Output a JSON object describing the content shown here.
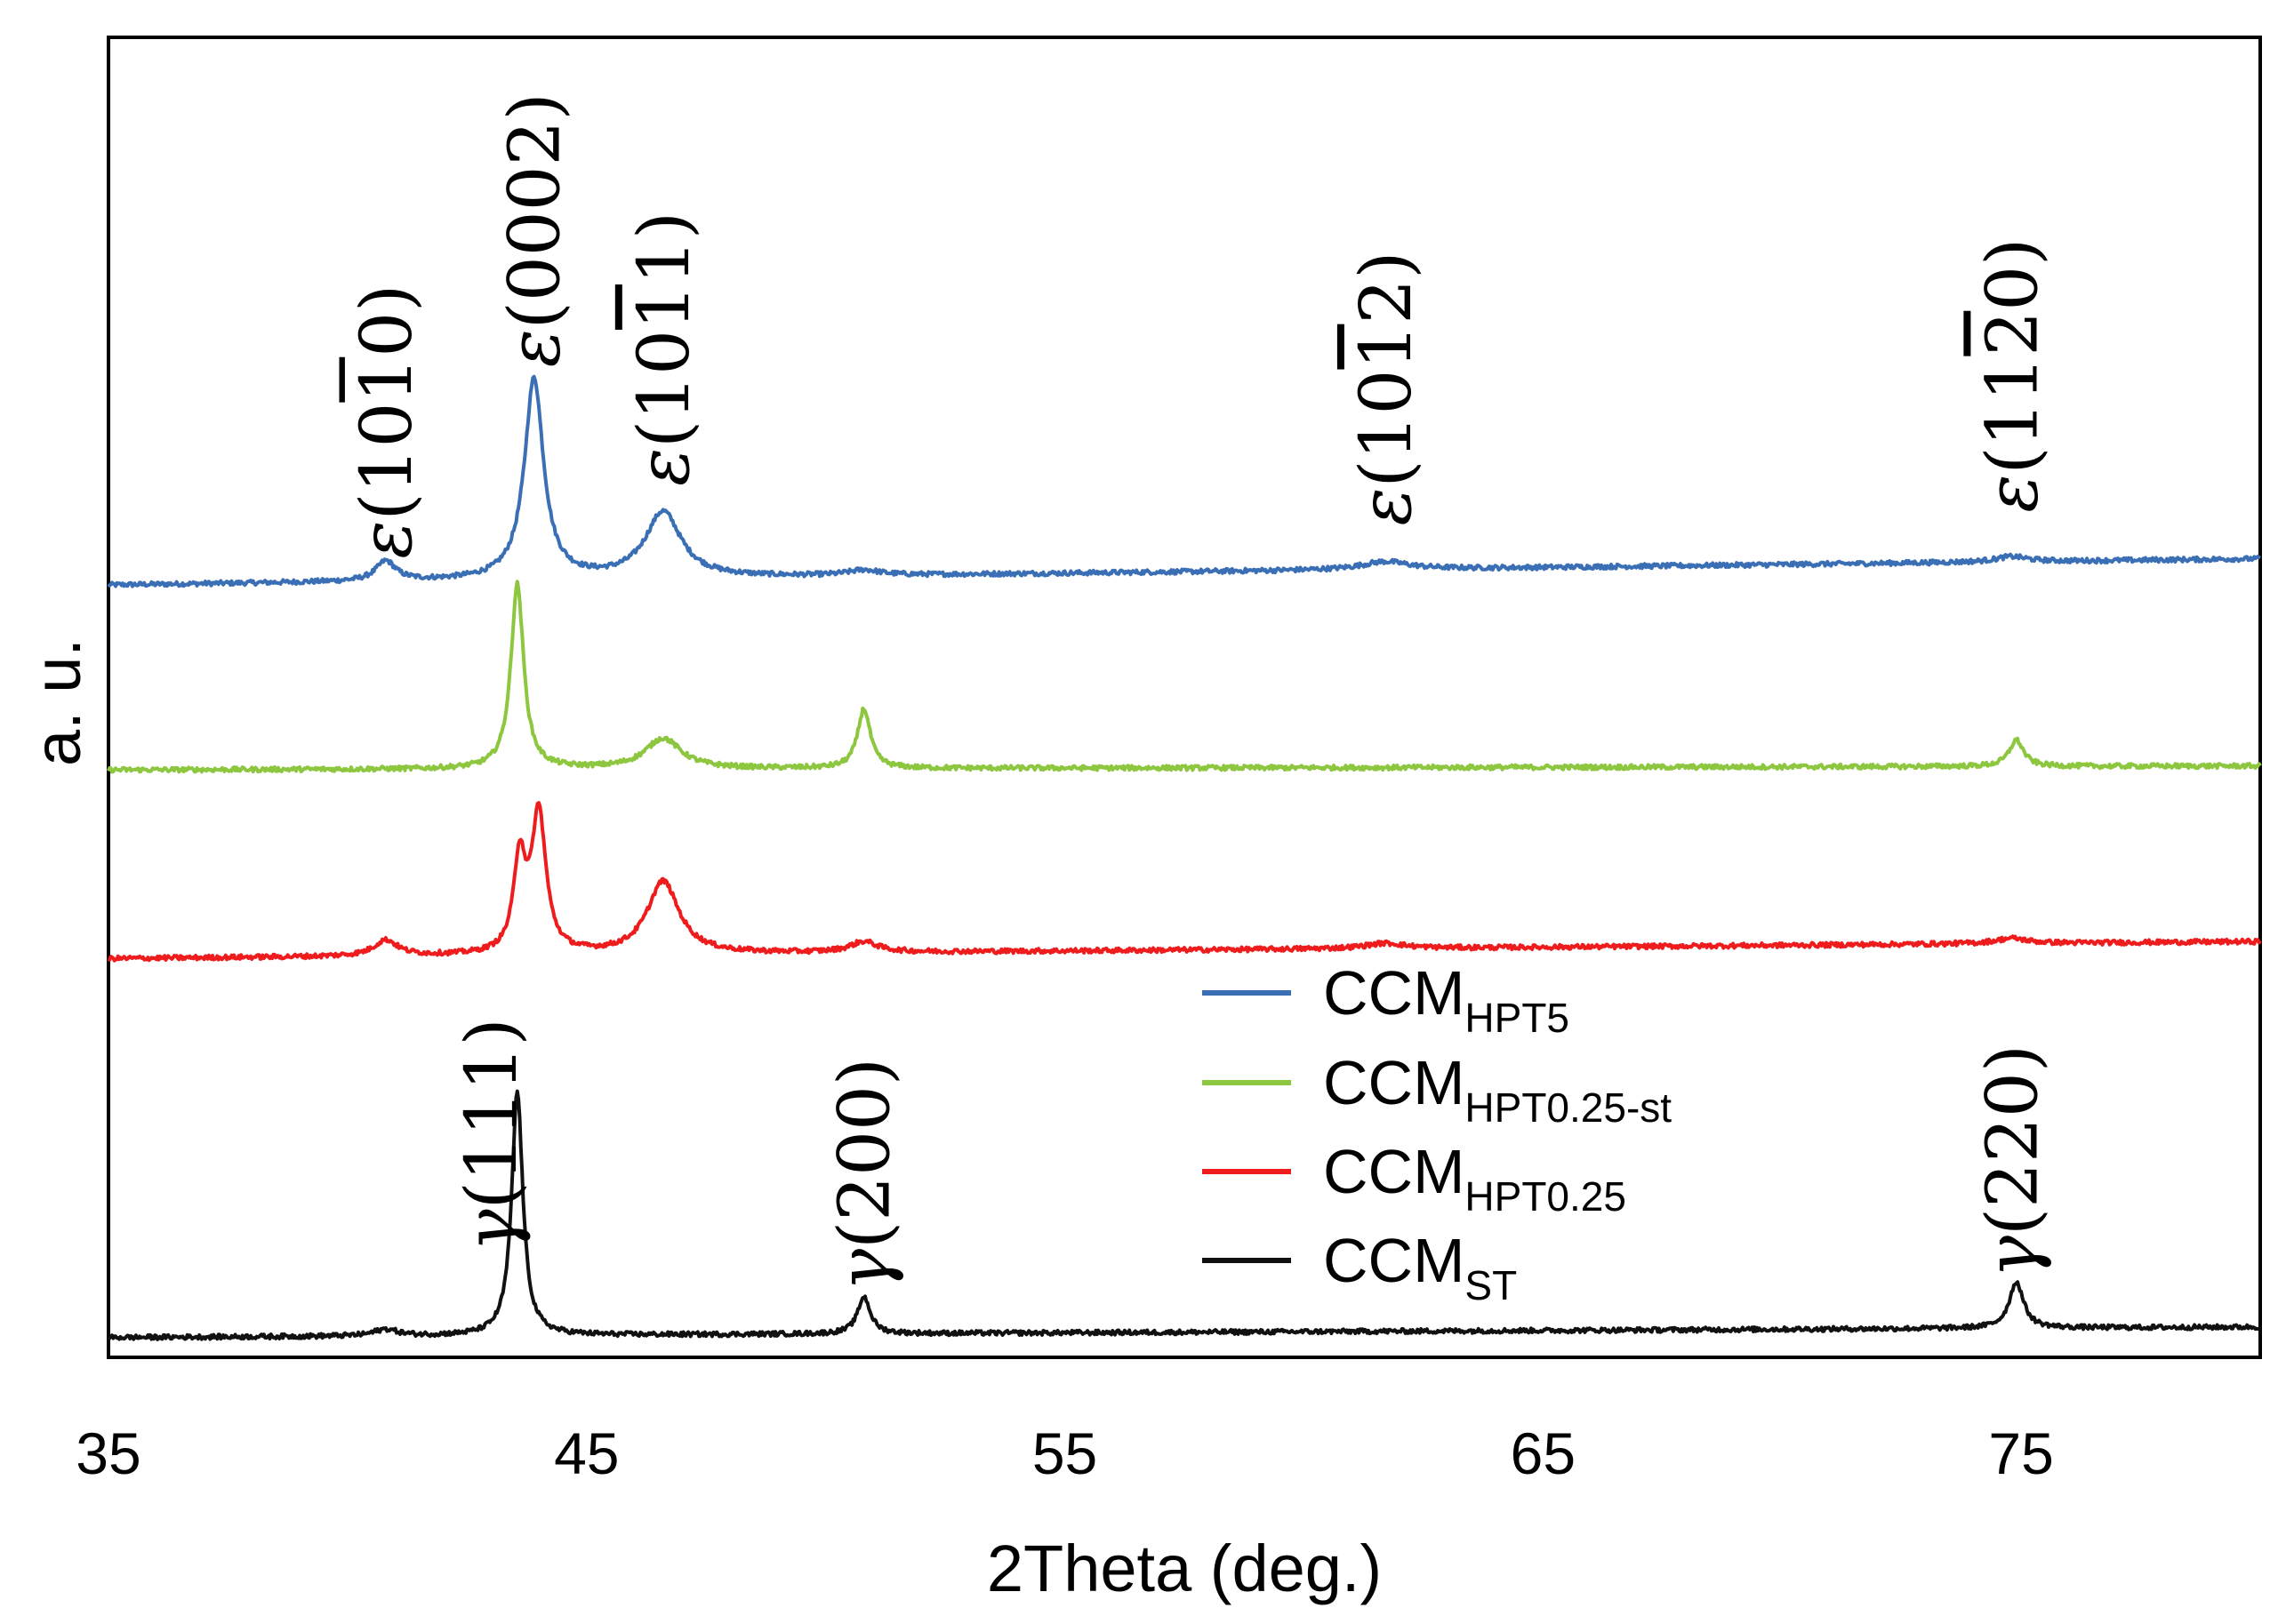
{
  "chart_data": {
    "type": "line",
    "title": "",
    "xlabel": "2Theta (deg.)",
    "ylabel": "a. u.",
    "xlim": [
      35,
      80
    ],
    "ylim": [
      0,
      100
    ],
    "xticks": [
      35,
      45,
      55,
      65,
      75
    ],
    "grid": false,
    "legend_position": "center-right",
    "series": [
      {
        "name": "CCM_HPT5",
        "label_main": "CCM",
        "label_sub": "HPT5",
        "color": "#3a6fb5",
        "baseline": 58.5,
        "baseline_end": 60.5,
        "peaks": [
          {
            "x": 40.8,
            "h": 1.5,
            "w": 0.25
          },
          {
            "x": 43.9,
            "h": 15.2,
            "w": 0.24
          },
          {
            "x": 46.6,
            "h": 5.0,
            "w": 0.45
          },
          {
            "x": 50.8,
            "h": 0.4,
            "w": 0.4
          },
          {
            "x": 61.7,
            "h": 0.6,
            "w": 0.6
          },
          {
            "x": 74.8,
            "h": 0.4,
            "w": 0.4
          }
        ]
      },
      {
        "name": "CCM_HPT0.25-st",
        "label_main": "CCM",
        "label_sub": "HPT0.25-st",
        "color": "#8dc63f",
        "baseline": 44.5,
        "baseline_end": 44.8,
        "peaks": [
          {
            "x": 43.55,
            "h": 14.0,
            "w": 0.16
          },
          {
            "x": 46.6,
            "h": 2.3,
            "w": 0.45
          },
          {
            "x": 50.8,
            "h": 4.5,
            "w": 0.16
          },
          {
            "x": 74.9,
            "h": 2.0,
            "w": 0.18
          }
        ]
      },
      {
        "name": "CCM_HPT0.25",
        "label_main": "CCM",
        "label_sub": "HPT0.25",
        "color": "#ee1c1c",
        "baseline": 30.2,
        "baseline_end": 31.5,
        "peaks": [
          {
            "x": 40.8,
            "h": 1.2,
            "w": 0.3
          },
          {
            "x": 43.6,
            "h": 7.0,
            "w": 0.15
          },
          {
            "x": 44.0,
            "h": 10.5,
            "w": 0.18
          },
          {
            "x": 46.6,
            "h": 5.5,
            "w": 0.4
          },
          {
            "x": 50.8,
            "h": 0.8,
            "w": 0.35
          },
          {
            "x": 61.7,
            "h": 0.4,
            "w": 0.5
          },
          {
            "x": 74.8,
            "h": 0.4,
            "w": 0.4
          }
        ]
      },
      {
        "name": "CCM_ST",
        "label_main": "CCM",
        "label_sub": "ST",
        "color": "#111111",
        "baseline": 1.5,
        "baseline_end": 2.3,
        "peaks": [
          {
            "x": 40.8,
            "h": 0.5,
            "w": 0.3
          },
          {
            "x": 43.55,
            "h": 18.5,
            "w": 0.14
          },
          {
            "x": 50.8,
            "h": 2.8,
            "w": 0.16
          },
          {
            "x": 74.9,
            "h": 3.5,
            "w": 0.18
          }
        ]
      }
    ],
    "annotations": [
      {
        "greek": "ε",
        "hkl": "(10",
        "bar": "1",
        "hkl_end": "0)",
        "x": 40.8,
        "y": 60.5
      },
      {
        "greek": "ε",
        "hkl": "(0002)",
        "bar": "",
        "hkl_end": "",
        "x": 43.9,
        "y": 75
      },
      {
        "greek": "ε",
        "hkl": "(10",
        "bar": "1",
        "hkl_end": "1)",
        "x": 46.6,
        "y": 66
      },
      {
        "greek": "ε",
        "hkl": "(10",
        "bar": "1",
        "hkl_end": "2)",
        "x": 61.7,
        "y": 63
      },
      {
        "greek": "ε",
        "hkl": "(11",
        "bar": "2",
        "hkl_end": "0)",
        "x": 74.8,
        "y": 64
      },
      {
        "greek": "γ",
        "hkl": "(111)",
        "bar": "",
        "hkl_end": "",
        "x": 43.0,
        "y": 8
      },
      {
        "greek": "γ",
        "hkl": "(200)",
        "bar": "",
        "hkl_end": "",
        "x": 50.8,
        "y": 5
      },
      {
        "greek": "γ",
        "hkl": "(220)",
        "bar": "",
        "hkl_end": "",
        "x": 74.8,
        "y": 6
      }
    ]
  }
}
